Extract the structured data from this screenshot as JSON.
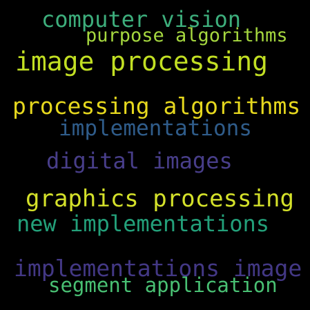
{
  "background": "#000000",
  "words": [
    {
      "text": "computer vision",
      "color": "#3dae7c"
    },
    {
      "text": "purpose algorithms",
      "color": "#a5d73f"
    },
    {
      "text": "image processing",
      "color": "#c2df23"
    },
    {
      "text": "processing algorithms",
      "color": "#e6d81e"
    },
    {
      "text": "implementations",
      "color": "#2f5c8a"
    },
    {
      "text": "digital images",
      "color": "#483e8a"
    },
    {
      "text": "graphics processing",
      "color": "#d4e12a"
    },
    {
      "text": "new implementations",
      "color": "#23a07a"
    },
    {
      "text": "implementations image",
      "color": "#433885"
    },
    {
      "text": "segment application",
      "color": "#49c073"
    }
  ]
}
